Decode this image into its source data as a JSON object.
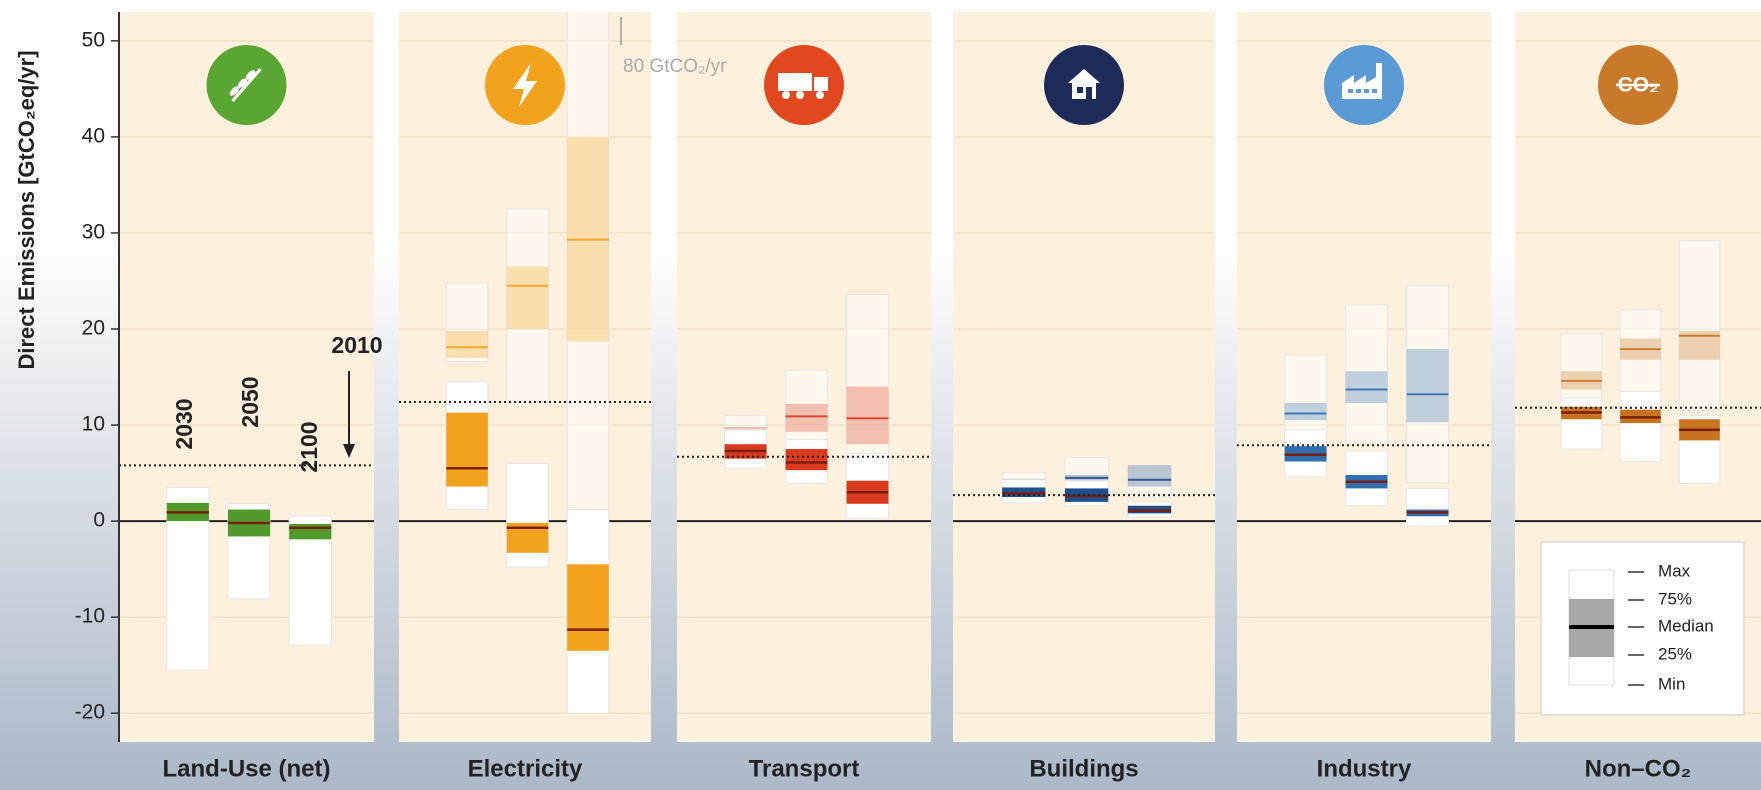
{
  "chart_data": {
    "type": "box",
    "y_label": "Direct Emissions [GtCO₂eq/yr]",
    "ylim": [
      -23,
      53
    ],
    "yticks": [
      -20,
      -10,
      0,
      10,
      20,
      30,
      40,
      50
    ],
    "grid": true,
    "reference_label": "2010",
    "year_labels": [
      "2030",
      "2050",
      "2100"
    ],
    "annotation": "80 GtCO₂/yr",
    "legend": {
      "labels": [
        "Max",
        "75%",
        "Median",
        "25%",
        "Min"
      ]
    },
    "sectors": [
      {
        "name": "Land-Use (net)",
        "color": "#4f9a2a",
        "icon_color": "#5aa632",
        "reference": 5.8,
        "boxes": [
          {
            "baseline": null,
            "mitigation": {
              "min": -15.5,
              "q1": 0,
              "median": 0.9,
              "q3": 1.9,
              "max": 3.5
            }
          },
          {
            "baseline": null,
            "mitigation": {
              "min": -8.1,
              "q1": -1.6,
              "median": -0.2,
              "q3": 1.2,
              "max": 1.8
            }
          },
          {
            "baseline": null,
            "mitigation": {
              "min": -12.9,
              "q1": -1.9,
              "median": -0.7,
              "q3": -0.3,
              "max": 0.5
            }
          }
        ]
      },
      {
        "name": "Electricity",
        "color": "#f2a11c",
        "icon_color": "#f2a21c",
        "reference": 12.4,
        "boxes": [
          {
            "baseline": {
              "min": 16.6,
              "q1": 17,
              "median": 18.1,
              "q3": 19.8,
              "max": 24.8
            },
            "mitigation": {
              "min": 1.2,
              "q1": 3.6,
              "median": 5.5,
              "q3": 11.3,
              "max": 14.5
            }
          },
          {
            "baseline": {
              "min": 12.5,
              "q1": 20,
              "median": 24.5,
              "q3": 26.5,
              "max": 32.5
            },
            "mitigation": {
              "min": -4.8,
              "q1": -3.3,
              "median": -0.7,
              "q3": -0.2,
              "max": 6
            }
          },
          {
            "baseline": {
              "min": 1,
              "q1": 18.7,
              "median": 29.3,
              "q3": 40,
              "max": 80
            },
            "mitigation": {
              "min": -20,
              "q1": -13.5,
              "median": -11.3,
              "q3": -4.5,
              "max": 1.2
            }
          }
        ]
      },
      {
        "name": "Transport",
        "color": "#d93a1e",
        "icon_color": "#e2471f",
        "reference": 6.7,
        "boxes": [
          {
            "baseline": {
              "min": 6.5,
              "q1": 8.5,
              "median": 9.2,
              "q3": 9.8,
              "max": 11
            },
            "mitigation": {
              "min": 5.5,
              "q1": 6.5,
              "median": 7.3,
              "q3": 8,
              "max": 9.5
            }
          },
          {
            "baseline": {
              "min": 7.5,
              "q1": 9.3,
              "median": 10.9,
              "q3": 12.2,
              "max": 15.7
            },
            "mitigation": {
              "min": 3.9,
              "q1": 5.3,
              "median": 6.1,
              "q3": 7.5,
              "max": 8.5
            }
          },
          {
            "baseline": {
              "min": 5,
              "q1": 8,
              "median": 10.7,
              "q3": 14,
              "max": 23.6
            },
            "mitigation": {
              "min": 0.3,
              "q1": 1.8,
              "median": 3,
              "q3": 4.2,
              "max": 7
            }
          }
        ]
      },
      {
        "name": "Buildings",
        "color": "#1e4f8f",
        "icon_color": "#1c2b58",
        "reference": 2.7,
        "boxes": [
          {
            "baseline": {
              "min": 2.6,
              "q1": 3.6,
              "median": 4.1,
              "q3": 4.4,
              "max": 5
            },
            "mitigation": {
              "min": 1.9,
              "q1": 2.5,
              "median": 2.9,
              "q3": 3.5,
              "max": 4.3
            }
          },
          {
            "baseline": {
              "min": 2.5,
              "q1": 4,
              "median": 4.5,
              "q3": 4.8,
              "max": 6.6
            },
            "mitigation": {
              "min": 1.6,
              "q1": 2,
              "median": 2.6,
              "q3": 3.4,
              "max": 4.2
            }
          },
          {
            "baseline": {
              "min": 2.5,
              "q1": 3.6,
              "median": 4.3,
              "q3": 5.8,
              "max": 5.8
            },
            "mitigation": {
              "min": 0.4,
              "q1": 0.8,
              "median": 1.1,
              "q3": 1.6,
              "max": 2
            }
          }
        ]
      },
      {
        "name": "Industry",
        "color": "#2f6fb0",
        "icon_color": "#5b9bd5",
        "reference": 7.9,
        "boxes": [
          {
            "baseline": {
              "min": 8.5,
              "q1": 10.5,
              "median": 11.2,
              "q3": 12.3,
              "max": 17.3
            },
            "mitigation": {
              "min": 4.6,
              "q1": 6.2,
              "median": 6.9,
              "q3": 7.8,
              "max": 9.5
            }
          },
          {
            "baseline": {
              "min": 8,
              "q1": 12.3,
              "median": 13.7,
              "q3": 15.6,
              "max": 22.5
            },
            "mitigation": {
              "min": 1.6,
              "q1": 3.4,
              "median": 4.1,
              "q3": 4.8,
              "max": 7.3
            }
          },
          {
            "baseline": {
              "min": 4,
              "q1": 10.3,
              "median": 13.2,
              "q3": 17.9,
              "max": 24.5
            },
            "mitigation": {
              "min": -0.5,
              "q1": 0.5,
              "median": 0.9,
              "q3": 1.2,
              "max": 3.4
            }
          }
        ]
      },
      {
        "name": "Non–CO₂",
        "color": "#c8731f",
        "icon_color": "#c87a2a",
        "icon_text": "CO₂",
        "reference": 11.8,
        "boxes": [
          {
            "baseline": {
              "min": 12.5,
              "q1": 13.7,
              "median": 14.6,
              "q3": 15.6,
              "max": 19.5
            },
            "mitigation": {
              "min": 7.5,
              "q1": 10.6,
              "median": 11.3,
              "q3": 11.9,
              "max": 12.8
            }
          },
          {
            "baseline": {
              "min": 13.5,
              "q1": 16.8,
              "median": 17.9,
              "q3": 19,
              "max": 22
            },
            "mitigation": {
              "min": 6.2,
              "q1": 10.2,
              "median": 10.8,
              "q3": 11.6,
              "max": 13.5
            }
          },
          {
            "baseline": {
              "min": 11.5,
              "q1": 16.8,
              "median": 19.3,
              "q3": 19.8,
              "max": 29.2
            },
            "mitigation": {
              "min": 3.9,
              "q1": 8.4,
              "median": 9.5,
              "q3": 10.6,
              "max": 11
            }
          }
        ]
      }
    ]
  }
}
